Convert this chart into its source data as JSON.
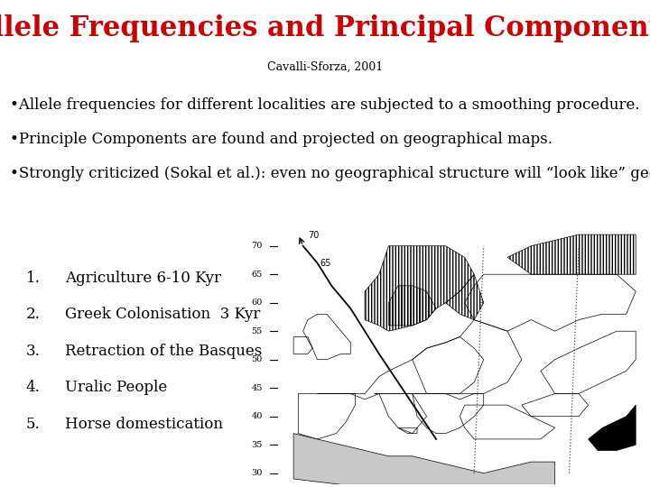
{
  "title": "Allele Frequencies and Principal Components",
  "subtitle": "Cavalli-Sforza, 2001",
  "title_color": "#cc0000",
  "subtitle_color": "#000000",
  "background_color": "#ffffff",
  "bullet_points": [
    "•Allele frequencies for different localities are subjected to a smoothing procedure.",
    "•Principle Components are found and projected on geographical maps.",
    "•Strongly criticized (Sokal et al.): even no geographical structure will “look like” geographical structure, no timing of gradients,..."
  ],
  "numbered_items": [
    "Agriculture 6-10 Kyr",
    "Greek Colonisation  3 Kyr",
    "Retraction of the Basques",
    "Uralic People",
    "Horse domestication"
  ],
  "title_fontsize": 22,
  "subtitle_fontsize": 9,
  "bullet_fontsize": 12,
  "list_fontsize": 12,
  "font_family": "DejaVu Serif",
  "map_xlim": [
    -15,
    65
  ],
  "map_ylim": [
    28,
    73
  ],
  "lat_ticks": [
    30,
    35,
    40,
    45,
    50,
    55,
    60,
    65,
    70
  ],
  "arc_lon": [
    -8,
    -5,
    -2,
    2,
    5,
    8,
    12,
    16,
    20
  ],
  "arc_lat": [
    70,
    67,
    63,
    59,
    55,
    51,
    46,
    41,
    36
  ]
}
